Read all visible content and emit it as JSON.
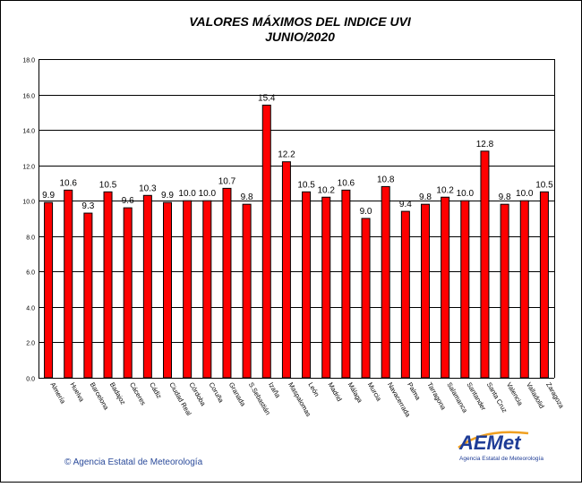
{
  "header": {
    "title_line1": "VALORES  MÁXIMOS DEL INDICE UVI",
    "title_line2": "JUNIO/2020"
  },
  "footer": {
    "copyright": "© Agencia Estatal de Meteorología",
    "logo_text": "AEMet",
    "logo_subtitle": "Agencia Estatal de Meteorología"
  },
  "colors": {
    "bar": "#ff0000",
    "bar_outline": "#000000",
    "grid": "#000000",
    "logo_blue": "#1e3c96",
    "logo_orange": "#f0a020",
    "copyright_blue": "#2a4a9a"
  },
  "chart_data": {
    "type": "bar",
    "title": "VALORES  MÁXIMOS DEL INDICE UVI JUNIO/2020",
    "xlabel": "",
    "ylabel": "",
    "ylim": [
      0,
      18
    ],
    "yticks": [
      0,
      2,
      4,
      6,
      8,
      10,
      12,
      14,
      16,
      18
    ],
    "ytick_labels": [
      "0.0",
      "2.0",
      "4.0",
      "6.0",
      "8.0",
      "10.0",
      "12.0",
      "14.0",
      "16.0",
      "18.0"
    ],
    "grid": true,
    "categories": [
      "Almería",
      "Huelva",
      "Barcelona",
      "Badajoz",
      "Cáceres",
      "Cádiz",
      "Ciudad Real",
      "Córdoba",
      "Coruña",
      "Granada",
      "S.Sebastián",
      "Izaña",
      "Maspalomas",
      "León",
      "Madrid",
      "Málaga",
      "Murcia",
      "Navacerrada",
      "Palma",
      "Tarragona",
      "Salamanca",
      "Santander",
      "Santa Cruz",
      "Valencia",
      "Valladolid",
      "Zaragoza"
    ],
    "values": [
      9.9,
      10.6,
      9.3,
      10.5,
      9.6,
      10.3,
      9.9,
      10.0,
      10.0,
      10.7,
      9.8,
      15.4,
      12.2,
      10.5,
      10.2,
      10.6,
      9.0,
      10.8,
      9.4,
      9.8,
      10.2,
      10.0,
      12.8,
      9.8,
      10.0,
      10.5
    ],
    "value_labels": [
      "9.9",
      "10.6",
      "9.3",
      "10.5",
      "9.6",
      "10.3",
      "9.9",
      "10.0",
      "10.0",
      "10.7",
      "9.8",
      "15.4",
      "12.2",
      "10.5",
      "10.2",
      "10.6",
      "9.0",
      "10.8",
      "9.4",
      "9.8",
      "10.2",
      "10.0",
      "12.8",
      "9.8",
      "10.0",
      "10.5"
    ]
  }
}
